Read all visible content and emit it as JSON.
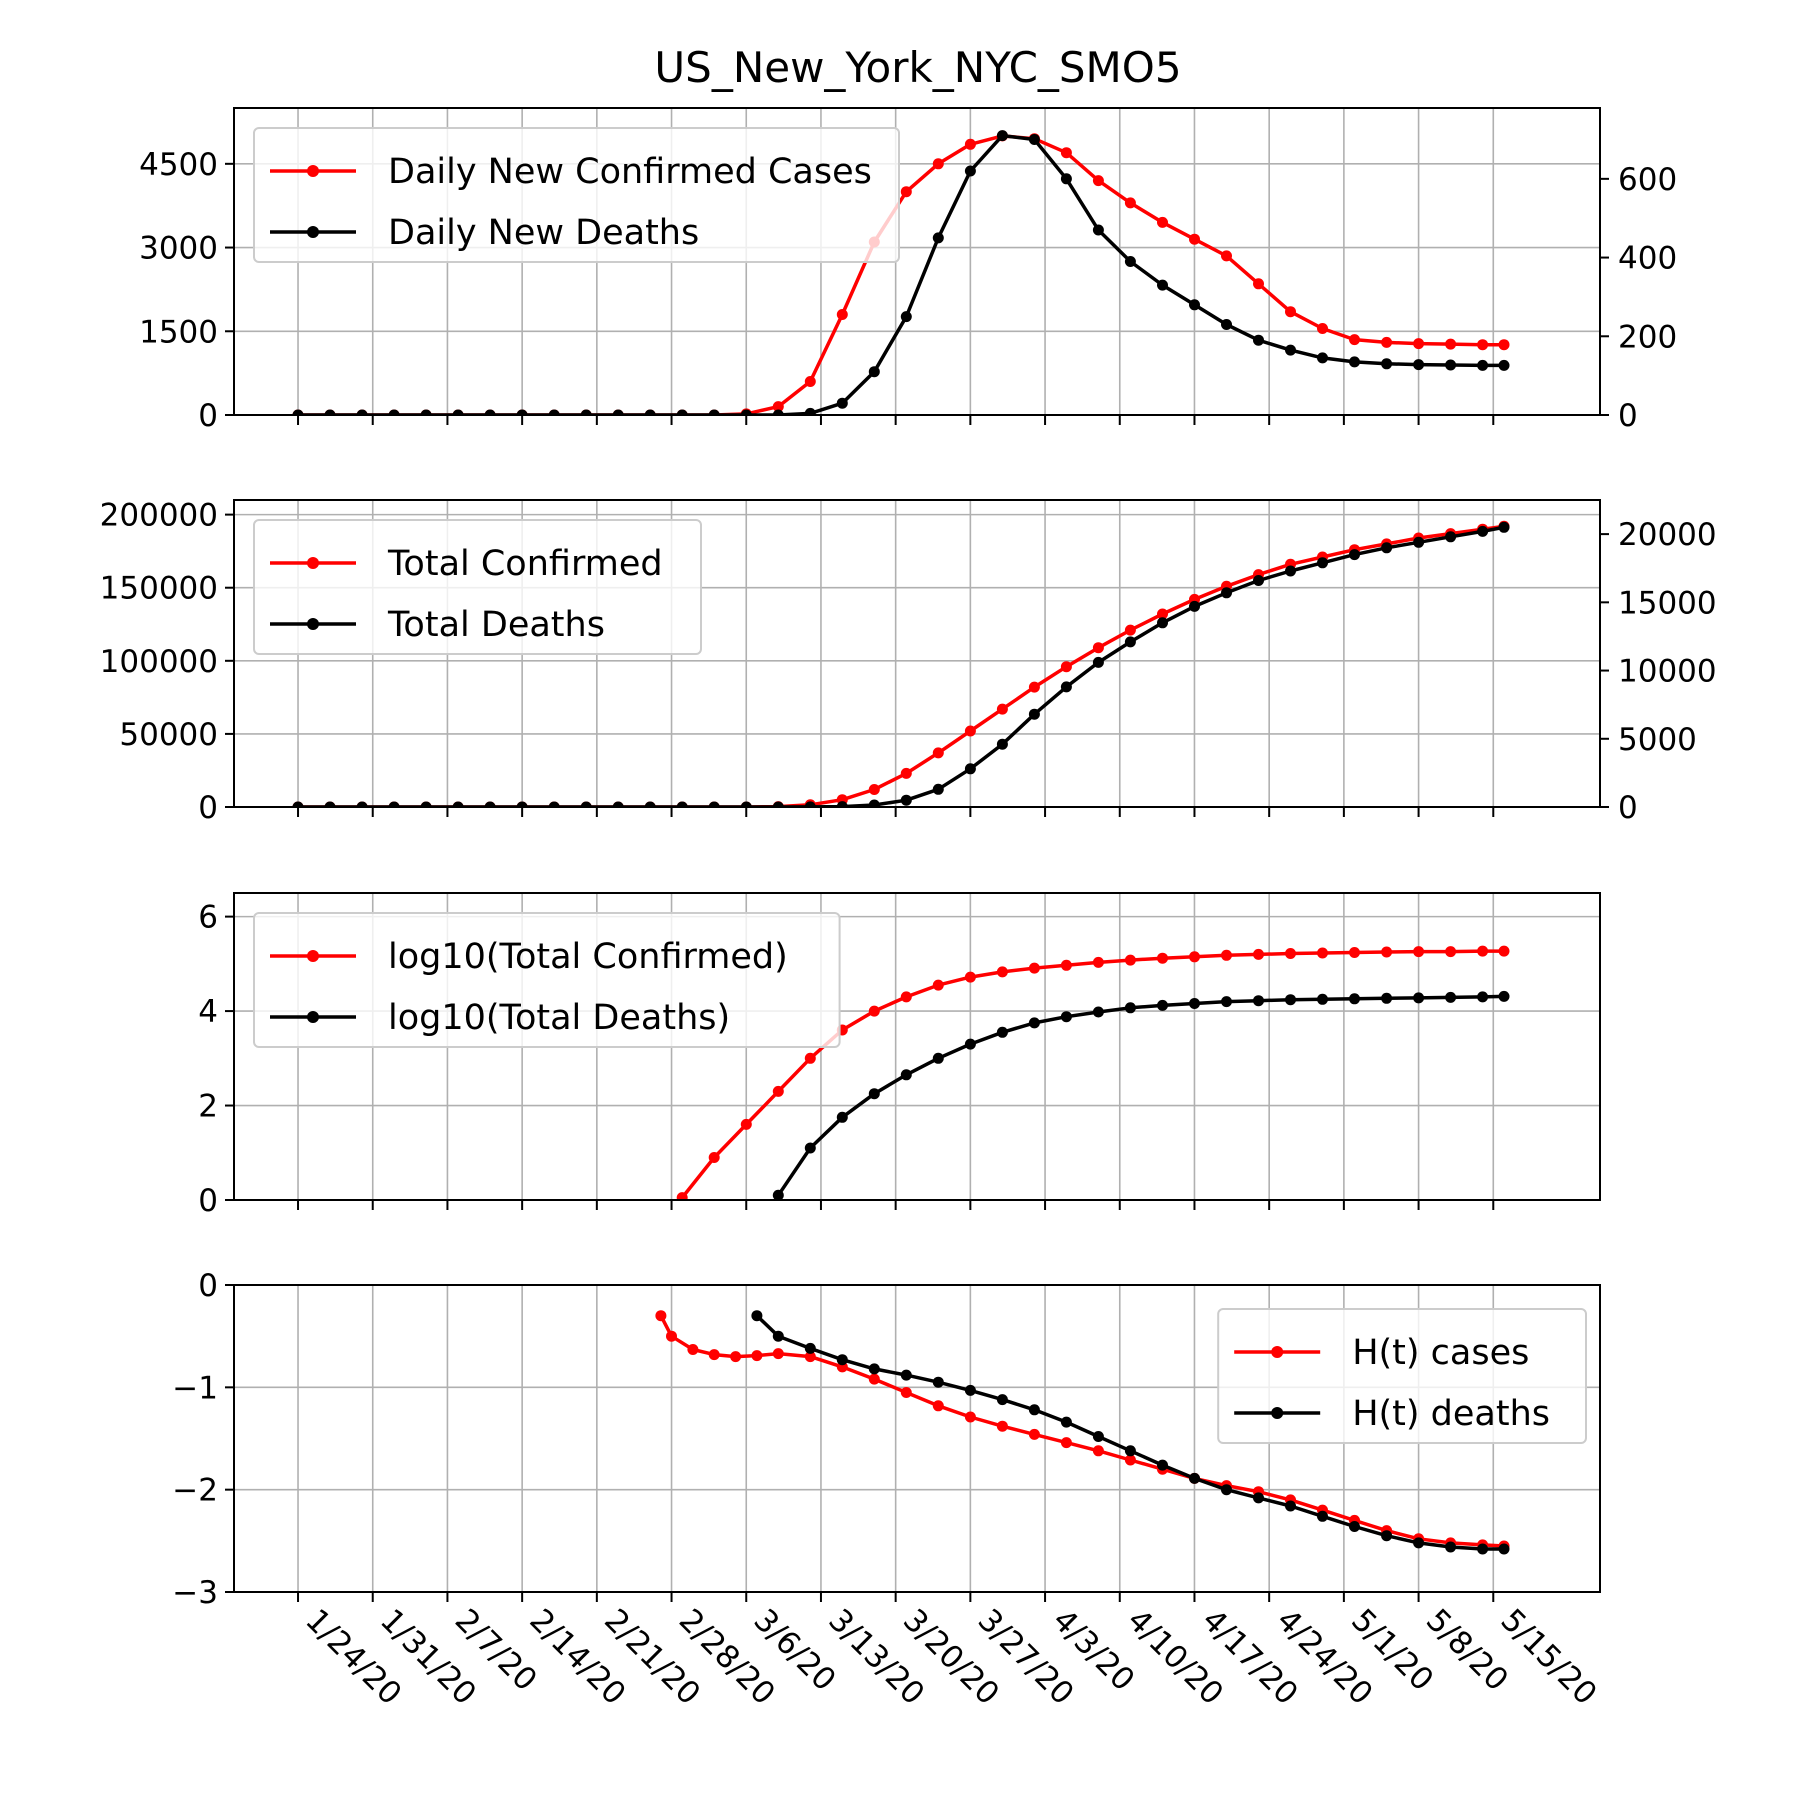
{
  "title": "US_New_York_NYC_SMO5",
  "colors": {
    "cases": "#ff0000",
    "deaths": "#000000",
    "grid": "#b0b0b0"
  },
  "chart_data": [
    {
      "type": "line",
      "x_dates": [
        "2020-01-24",
        "2020-01-27",
        "2020-01-30",
        "2020-02-02",
        "2020-02-05",
        "2020-02-08",
        "2020-02-11",
        "2020-02-14",
        "2020-02-17",
        "2020-02-20",
        "2020-02-23",
        "2020-02-26",
        "2020-02-29",
        "2020-03-03",
        "2020-03-06",
        "2020-03-09",
        "2020-03-12",
        "2020-03-15",
        "2020-03-18",
        "2020-03-21",
        "2020-03-24",
        "2020-03-27",
        "2020-03-30",
        "2020-04-02",
        "2020-04-05",
        "2020-04-08",
        "2020-04-11",
        "2020-04-14",
        "2020-04-17",
        "2020-04-20",
        "2020-04-23",
        "2020-04-26",
        "2020-04-29",
        "2020-05-02",
        "2020-05-05",
        "2020-05-08",
        "2020-05-11",
        "2020-05-14",
        "2020-05-16"
      ],
      "series": [
        {
          "name": "Daily New Confirmed Cases",
          "axis": "left",
          "color": "#ff0000",
          "values": [
            0,
            0,
            0,
            0,
            0,
            0,
            0,
            0,
            0,
            0,
            0,
            0,
            0,
            0,
            20,
            150,
            600,
            1800,
            3100,
            4000,
            4500,
            4850,
            5000,
            4950,
            4700,
            4200,
            3800,
            3450,
            3150,
            2850,
            2350,
            1850,
            1550,
            1350,
            1300,
            1280,
            1270,
            1260,
            1260
          ]
        },
        {
          "name": "Daily New Deaths",
          "axis": "right",
          "color": "#000000",
          "values": [
            0,
            0,
            0,
            0,
            0,
            0,
            0,
            0,
            0,
            0,
            0,
            0,
            0,
            0,
            0,
            0,
            4,
            30,
            110,
            250,
            450,
            620,
            710,
            700,
            600,
            470,
            390,
            330,
            280,
            230,
            190,
            165,
            145,
            135,
            130,
            128,
            127,
            126,
            126
          ]
        }
      ],
      "ylim_left": [
        0,
        5500
      ],
      "yticks_left": [
        "0",
        "1500",
        "3000",
        "4500"
      ],
      "ylim_right": [
        0,
        780
      ],
      "yticks_right": [
        "0",
        "200",
        "400",
        "600"
      ],
      "grid": true,
      "legend_position": "upper-left"
    },
    {
      "type": "line",
      "x_dates": [
        "2020-01-24",
        "2020-01-27",
        "2020-01-30",
        "2020-02-02",
        "2020-02-05",
        "2020-02-08",
        "2020-02-11",
        "2020-02-14",
        "2020-02-17",
        "2020-02-20",
        "2020-02-23",
        "2020-02-26",
        "2020-02-29",
        "2020-03-03",
        "2020-03-06",
        "2020-03-09",
        "2020-03-12",
        "2020-03-15",
        "2020-03-18",
        "2020-03-21",
        "2020-03-24",
        "2020-03-27",
        "2020-03-30",
        "2020-04-02",
        "2020-04-05",
        "2020-04-08",
        "2020-04-11",
        "2020-04-14",
        "2020-04-17",
        "2020-04-20",
        "2020-04-23",
        "2020-04-26",
        "2020-04-29",
        "2020-05-02",
        "2020-05-05",
        "2020-05-08",
        "2020-05-11",
        "2020-05-14",
        "2020-05-16"
      ],
      "series": [
        {
          "name": "Total Confirmed",
          "axis": "left",
          "color": "#ff0000",
          "values": [
            0,
            0,
            0,
            0,
            0,
            0,
            0,
            0,
            0,
            0,
            0,
            0,
            0,
            0,
            20,
            300,
            1500,
            5000,
            12000,
            23000,
            37000,
            52000,
            67000,
            82000,
            96000,
            109000,
            121000,
            132000,
            142000,
            151000,
            159000,
            166000,
            171000,
            176000,
            180000,
            184000,
            187000,
            190000,
            192000
          ]
        },
        {
          "name": "Total Deaths",
          "axis": "right",
          "color": "#000000",
          "values": [
            0,
            0,
            0,
            0,
            0,
            0,
            0,
            0,
            0,
            0,
            0,
            0,
            0,
            0,
            0,
            0,
            5,
            30,
            150,
            500,
            1300,
            2800,
            4600,
            6800,
            8800,
            10600,
            12100,
            13500,
            14700,
            15700,
            16600,
            17300,
            17900,
            18500,
            19000,
            19400,
            19800,
            20200,
            20500
          ]
        }
      ],
      "ylim_left": [
        0,
        210000
      ],
      "yticks_left": [
        "0",
        "50000",
        "100000",
        "150000",
        "200000"
      ],
      "ylim_right": [
        0,
        22500
      ],
      "yticks_right": [
        "0",
        "5000",
        "10000",
        "15000",
        "20000"
      ],
      "grid": true,
      "legend_position": "upper-left"
    },
    {
      "type": "line",
      "x_dates": [
        "2020-02-29",
        "2020-03-03",
        "2020-03-06",
        "2020-03-09",
        "2020-03-12",
        "2020-03-15",
        "2020-03-18",
        "2020-03-21",
        "2020-03-24",
        "2020-03-27",
        "2020-03-30",
        "2020-04-02",
        "2020-04-05",
        "2020-04-08",
        "2020-04-11",
        "2020-04-14",
        "2020-04-17",
        "2020-04-20",
        "2020-04-23",
        "2020-04-26",
        "2020-04-29",
        "2020-05-02",
        "2020-05-05",
        "2020-05-08",
        "2020-05-11",
        "2020-05-14",
        "2020-05-16"
      ],
      "series": [
        {
          "name": "log10(Total Confirmed)",
          "color": "#ff0000",
          "values": [
            0.05,
            0.9,
            1.6,
            2.3,
            3.0,
            3.6,
            4.0,
            4.3,
            4.55,
            4.72,
            4.83,
            4.91,
            4.97,
            5.03,
            5.08,
            5.12,
            5.15,
            5.18,
            5.2,
            5.22,
            5.23,
            5.24,
            5.25,
            5.26,
            5.26,
            5.27,
            5.27
          ]
        },
        {
          "name": "log10(Total Deaths)",
          "color": "#000000",
          "values": [
            null,
            null,
            null,
            0.1,
            1.1,
            1.75,
            2.25,
            2.65,
            3.0,
            3.3,
            3.55,
            3.75,
            3.88,
            3.98,
            4.07,
            4.12,
            4.16,
            4.2,
            4.22,
            4.24,
            4.25,
            4.26,
            4.27,
            4.28,
            4.29,
            4.3,
            4.31
          ]
        }
      ],
      "ylim": [
        0,
        6.5
      ],
      "yticks": [
        "0",
        "2",
        "4",
        "6"
      ],
      "grid": true,
      "legend_position": "upper-left"
    },
    {
      "type": "line",
      "x_dates": [
        "2020-02-27",
        "2020-02-28",
        "2020-03-01",
        "2020-03-03",
        "2020-03-05",
        "2020-03-07",
        "2020-03-09",
        "2020-03-12",
        "2020-03-15",
        "2020-03-18",
        "2020-03-21",
        "2020-03-24",
        "2020-03-27",
        "2020-03-30",
        "2020-04-02",
        "2020-04-05",
        "2020-04-08",
        "2020-04-11",
        "2020-04-14",
        "2020-04-17",
        "2020-04-20",
        "2020-04-23",
        "2020-04-26",
        "2020-04-29",
        "2020-05-02",
        "2020-05-05",
        "2020-05-08",
        "2020-05-11",
        "2020-05-14",
        "2020-05-16"
      ],
      "series": [
        {
          "name": "H(t) cases",
          "color": "#ff0000",
          "values": [
            -0.3,
            -0.5,
            -0.63,
            -0.68,
            -0.7,
            -0.69,
            -0.67,
            -0.7,
            -0.8,
            -0.92,
            -1.05,
            -1.18,
            -1.29,
            -1.38,
            -1.46,
            -1.54,
            -1.62,
            -1.71,
            -1.8,
            -1.89,
            -1.96,
            -2.02,
            -2.1,
            -2.2,
            -2.3,
            -2.4,
            -2.48,
            -2.52,
            -2.54,
            -2.55
          ]
        },
        {
          "name": "H(t) deaths",
          "color": "#000000",
          "values": [
            null,
            null,
            null,
            null,
            null,
            -0.3,
            -0.5,
            -0.62,
            -0.73,
            -0.82,
            -0.88,
            -0.95,
            -1.03,
            -1.12,
            -1.22,
            -1.34,
            -1.48,
            -1.62,
            -1.76,
            -1.89,
            -2.0,
            -2.08,
            -2.16,
            -2.26,
            -2.36,
            -2.45,
            -2.52,
            -2.56,
            -2.58,
            -2.58
          ]
        }
      ],
      "ylim": [
        -3,
        0
      ],
      "yticks": [
        "−3",
        "−2",
        "−1",
        "0"
      ],
      "grid": true,
      "legend_position": "upper-right"
    }
  ],
  "x_axis": {
    "tick_dates": [
      "2020-01-24",
      "2020-01-31",
      "2020-02-07",
      "2020-02-14",
      "2020-02-21",
      "2020-02-28",
      "2020-03-06",
      "2020-03-13",
      "2020-03-20",
      "2020-03-27",
      "2020-04-03",
      "2020-04-10",
      "2020-04-17",
      "2020-04-24",
      "2020-05-01",
      "2020-05-08",
      "2020-05-15"
    ],
    "tick_labels": [
      "1/24/20",
      "1/31/20",
      "2/7/20",
      "2/14/20",
      "2/21/20",
      "2/28/20",
      "3/6/20",
      "3/13/20",
      "3/20/20",
      "3/27/20",
      "4/3/20",
      "4/10/20",
      "4/17/20",
      "4/24/20",
      "5/1/20",
      "5/8/20",
      "5/15/20"
    ],
    "range": [
      "2020-01-18",
      "2020-05-25"
    ]
  }
}
